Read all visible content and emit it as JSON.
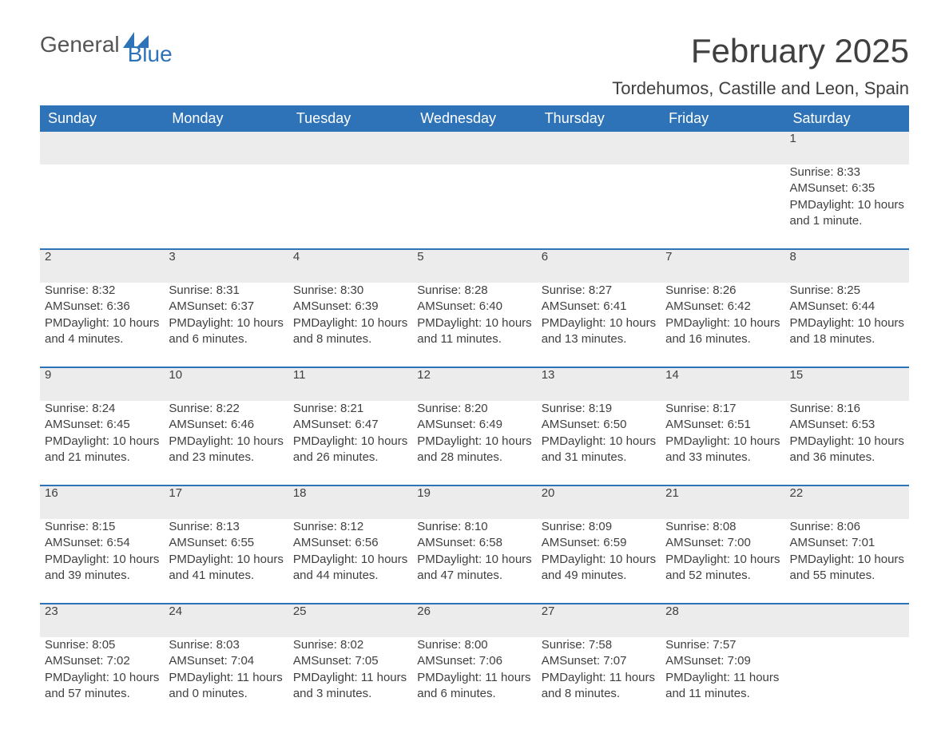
{
  "logo": {
    "text_general": "General",
    "text_blue": "Blue"
  },
  "header": {
    "month_title": "February 2025",
    "location": "Tordehumos, Castille and Leon, Spain"
  },
  "colors": {
    "header_bg": "#2e73b8",
    "header_text": "#ffffff",
    "daynum_bg": "#ececec",
    "border_top": "#2e73b8",
    "body_text": "#404040",
    "page_bg": "#ffffff"
  },
  "day_headers": [
    "Sunday",
    "Monday",
    "Tuesday",
    "Wednesday",
    "Thursday",
    "Friday",
    "Saturday"
  ],
  "labels": {
    "sunrise_prefix": "Sunrise: ",
    "sunset_prefix": "Sunset: ",
    "daylight_prefix": "Daylight: "
  },
  "weeks": [
    [
      null,
      null,
      null,
      null,
      null,
      null,
      {
        "n": "1",
        "sunrise": "8:33 AM",
        "sunset": "6:35 PM",
        "daylight": "10 hours and 1 minute."
      }
    ],
    [
      {
        "n": "2",
        "sunrise": "8:32 AM",
        "sunset": "6:36 PM",
        "daylight": "10 hours and 4 minutes."
      },
      {
        "n": "3",
        "sunrise": "8:31 AM",
        "sunset": "6:37 PM",
        "daylight": "10 hours and 6 minutes."
      },
      {
        "n": "4",
        "sunrise": "8:30 AM",
        "sunset": "6:39 PM",
        "daylight": "10 hours and 8 minutes."
      },
      {
        "n": "5",
        "sunrise": "8:28 AM",
        "sunset": "6:40 PM",
        "daylight": "10 hours and 11 minutes."
      },
      {
        "n": "6",
        "sunrise": "8:27 AM",
        "sunset": "6:41 PM",
        "daylight": "10 hours and 13 minutes."
      },
      {
        "n": "7",
        "sunrise": "8:26 AM",
        "sunset": "6:42 PM",
        "daylight": "10 hours and 16 minutes."
      },
      {
        "n": "8",
        "sunrise": "8:25 AM",
        "sunset": "6:44 PM",
        "daylight": "10 hours and 18 minutes."
      }
    ],
    [
      {
        "n": "9",
        "sunrise": "8:24 AM",
        "sunset": "6:45 PM",
        "daylight": "10 hours and 21 minutes."
      },
      {
        "n": "10",
        "sunrise": "8:22 AM",
        "sunset": "6:46 PM",
        "daylight": "10 hours and 23 minutes."
      },
      {
        "n": "11",
        "sunrise": "8:21 AM",
        "sunset": "6:47 PM",
        "daylight": "10 hours and 26 minutes."
      },
      {
        "n": "12",
        "sunrise": "8:20 AM",
        "sunset": "6:49 PM",
        "daylight": "10 hours and 28 minutes."
      },
      {
        "n": "13",
        "sunrise": "8:19 AM",
        "sunset": "6:50 PM",
        "daylight": "10 hours and 31 minutes."
      },
      {
        "n": "14",
        "sunrise": "8:17 AM",
        "sunset": "6:51 PM",
        "daylight": "10 hours and 33 minutes."
      },
      {
        "n": "15",
        "sunrise": "8:16 AM",
        "sunset": "6:53 PM",
        "daylight": "10 hours and 36 minutes."
      }
    ],
    [
      {
        "n": "16",
        "sunrise": "8:15 AM",
        "sunset": "6:54 PM",
        "daylight": "10 hours and 39 minutes."
      },
      {
        "n": "17",
        "sunrise": "8:13 AM",
        "sunset": "6:55 PM",
        "daylight": "10 hours and 41 minutes."
      },
      {
        "n": "18",
        "sunrise": "8:12 AM",
        "sunset": "6:56 PM",
        "daylight": "10 hours and 44 minutes."
      },
      {
        "n": "19",
        "sunrise": "8:10 AM",
        "sunset": "6:58 PM",
        "daylight": "10 hours and 47 minutes."
      },
      {
        "n": "20",
        "sunrise": "8:09 AM",
        "sunset": "6:59 PM",
        "daylight": "10 hours and 49 minutes."
      },
      {
        "n": "21",
        "sunrise": "8:08 AM",
        "sunset": "7:00 PM",
        "daylight": "10 hours and 52 minutes."
      },
      {
        "n": "22",
        "sunrise": "8:06 AM",
        "sunset": "7:01 PM",
        "daylight": "10 hours and 55 minutes."
      }
    ],
    [
      {
        "n": "23",
        "sunrise": "8:05 AM",
        "sunset": "7:02 PM",
        "daylight": "10 hours and 57 minutes."
      },
      {
        "n": "24",
        "sunrise": "8:03 AM",
        "sunset": "7:04 PM",
        "daylight": "11 hours and 0 minutes."
      },
      {
        "n": "25",
        "sunrise": "8:02 AM",
        "sunset": "7:05 PM",
        "daylight": "11 hours and 3 minutes."
      },
      {
        "n": "26",
        "sunrise": "8:00 AM",
        "sunset": "7:06 PM",
        "daylight": "11 hours and 6 minutes."
      },
      {
        "n": "27",
        "sunrise": "7:58 AM",
        "sunset": "7:07 PM",
        "daylight": "11 hours and 8 minutes."
      },
      {
        "n": "28",
        "sunrise": "7:57 AM",
        "sunset": "7:09 PM",
        "daylight": "11 hours and 11 minutes."
      },
      null
    ]
  ]
}
